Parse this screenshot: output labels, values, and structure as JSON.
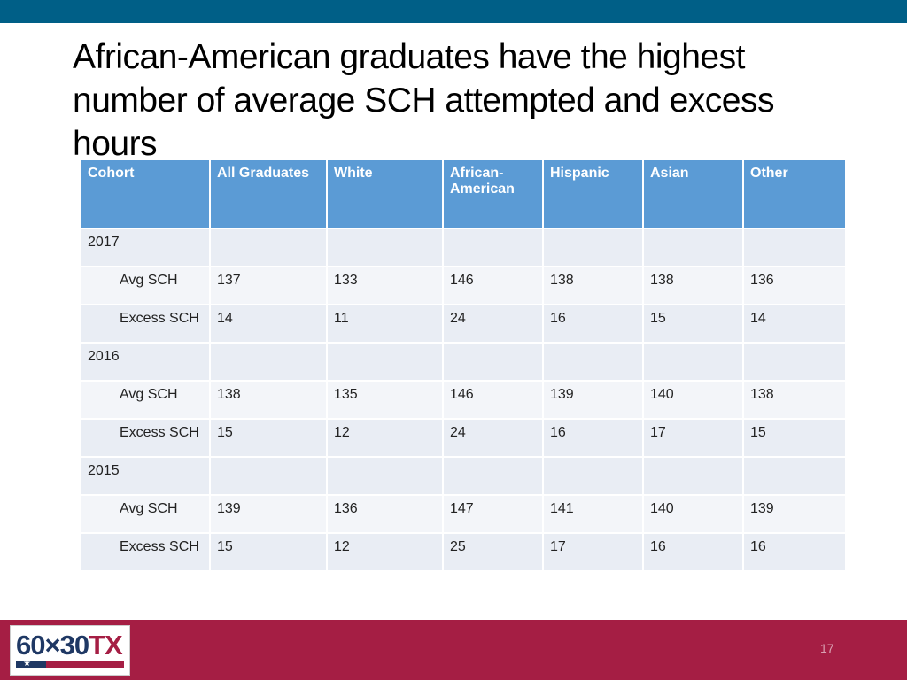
{
  "slide": {
    "title": "African-American graduates have the highest number of average SCH attempted and excess hours",
    "page_number": "17"
  },
  "logo": {
    "text_main": "60×30",
    "text_accent": "TX",
    "star": "★"
  },
  "table": {
    "headers": [
      "Cohort",
      "All Graduates",
      "White",
      "African-American",
      "Hispanic",
      "Asian",
      "Other"
    ],
    "groups": [
      {
        "year": "2017",
        "avg": {
          "label": "Avg SCH",
          "values": [
            "137",
            "133",
            "146",
            "138",
            "138",
            "136"
          ]
        },
        "excess": {
          "label": "Excess SCH",
          "values": [
            "14",
            "11",
            "24",
            "16",
            "15",
            "14"
          ]
        }
      },
      {
        "year": "2016",
        "avg": {
          "label": "Avg SCH",
          "values": [
            "138",
            "135",
            "146",
            "139",
            "140",
            "138"
          ]
        },
        "excess": {
          "label": "Excess SCH",
          "values": [
            "15",
            "12",
            "24",
            "16",
            "17",
            "15"
          ]
        }
      },
      {
        "year": "2015",
        "avg": {
          "label": "Avg SCH",
          "values": [
            "139",
            "136",
            "147",
            "141",
            "140",
            "139"
          ]
        },
        "excess": {
          "label": "Excess SCH",
          "values": [
            "15",
            "12",
            "25",
            "17",
            "16",
            "16"
          ]
        }
      }
    ]
  },
  "colors": {
    "top_bar": "#005f87",
    "header": "#5b9bd5",
    "footer": "#a51e44"
  }
}
